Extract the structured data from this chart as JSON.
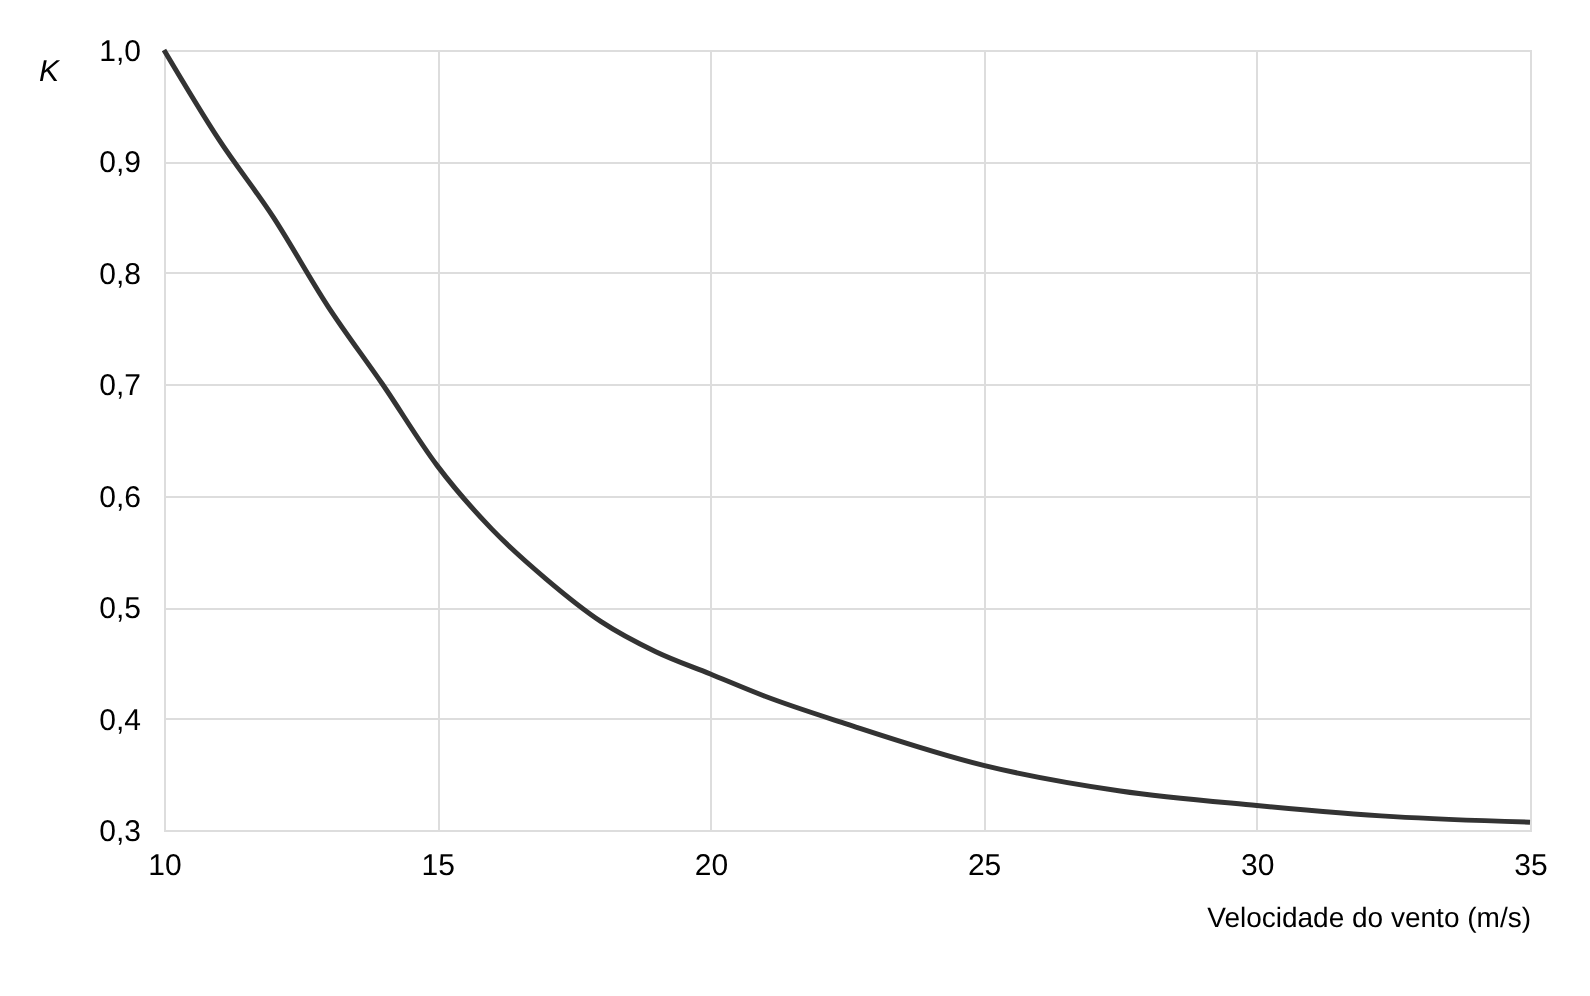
{
  "chart_data": {
    "type": "line",
    "xlabel": "Velocidade do vento (m/s)",
    "ylabel": "K",
    "x": [
      10,
      11,
      12,
      13,
      14,
      15,
      16,
      17,
      18,
      19,
      20,
      21,
      22.5,
      25,
      27.5,
      30,
      32.5,
      35
    ],
    "series": [
      {
        "color": "#333333",
        "values": [
          1.0,
          0.92,
          0.85,
          0.77,
          0.7,
          0.627,
          0.57,
          0.525,
          0.487,
          0.46,
          0.44,
          0.42,
          0.395,
          0.358,
          0.335,
          0.322,
          0.312,
          0.307
        ]
      }
    ],
    "xlim": [
      10,
      35
    ],
    "xticks": [
      10,
      15,
      20,
      25,
      30,
      35
    ],
    "ylim": [
      0.3,
      1.0
    ],
    "yticks": [
      {
        "value": 0.3,
        "label": "0,3"
      },
      {
        "value": 0.4,
        "label": "0,4"
      },
      {
        "value": 0.5,
        "label": "0,5"
      },
      {
        "value": 0.6,
        "label": "0,6"
      },
      {
        "value": 0.7,
        "label": "0,7"
      },
      {
        "value": 0.8,
        "label": "0,8"
      },
      {
        "value": 0.9,
        "label": "0,9"
      },
      {
        "value": 1.0,
        "label": "1,0"
      }
    ],
    "grid": true,
    "marker": "none",
    "line_style": "solid"
  }
}
